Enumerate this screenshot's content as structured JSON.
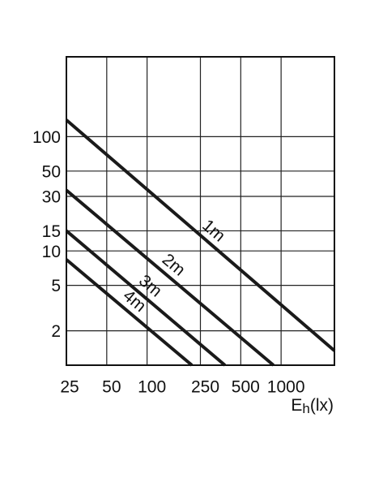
{
  "chart_data": {
    "type": "line",
    "xscale": "log",
    "yscale": "log",
    "xlim": [
      25,
      2500
    ],
    "ylim": [
      1,
      500
    ],
    "xticks": [
      25,
      50,
      100,
      250,
      500,
      1000
    ],
    "yticks": [
      2,
      5,
      10,
      15,
      30,
      50,
      100
    ],
    "grid": true,
    "x_label": [
      "E",
      "h",
      "(lx)"
    ],
    "series": [
      {
        "name": "1m",
        "color": "#1a1a1a",
        "x": [
          25,
          2500
        ],
        "values": [
          140,
          1.34
        ]
      },
      {
        "name": "2m",
        "color": "#1a1a1a",
        "x": [
          25,
          877
        ],
        "values": [
          34,
          1
        ]
      },
      {
        "name": "3m",
        "color": "#1a1a1a",
        "x": [
          25,
          381
        ],
        "values": [
          15,
          1
        ]
      },
      {
        "name": "4m",
        "color": "#1a1a1a",
        "x": [
          25,
          216
        ],
        "values": [
          8.4,
          1
        ]
      }
    ]
  }
}
